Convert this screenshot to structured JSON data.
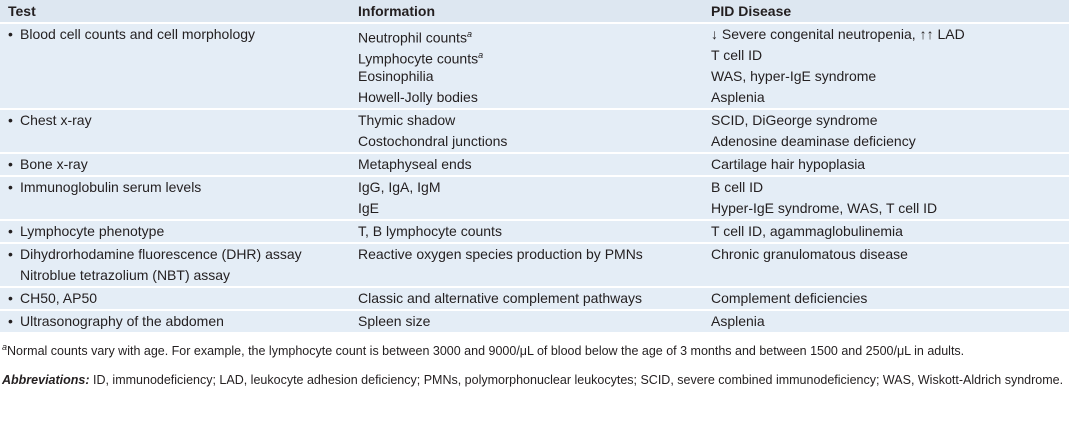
{
  "headers": [
    "Test",
    "Information",
    "PID Disease"
  ],
  "rows": [
    {
      "test": [
        "Blood cell counts and cell morphology"
      ],
      "info": [
        "Neutrophil counts",
        "Lymphocyte counts",
        "Eosinophilia",
        "Howell-Jolly bodies"
      ],
      "info_sup": [
        "a",
        "a",
        "",
        ""
      ],
      "disease": [
        "↓ Severe congenital neutropenia, ↑↑ LAD",
        "T cell ID",
        "WAS, hyper-IgE syndrome",
        "Asplenia"
      ]
    },
    {
      "test": [
        "Chest x-ray"
      ],
      "info": [
        "Thymic shadow",
        "Costochondral junctions"
      ],
      "info_sup": [
        "",
        ""
      ],
      "disease": [
        "SCID, DiGeorge syndrome",
        "Adenosine deaminase deficiency"
      ]
    },
    {
      "test": [
        "Bone x-ray"
      ],
      "info": [
        "Metaphyseal ends"
      ],
      "info_sup": [
        ""
      ],
      "disease": [
        "Cartilage hair hypoplasia"
      ]
    },
    {
      "test": [
        "Immunoglobulin serum levels"
      ],
      "info": [
        "IgG, IgA, IgM",
        "IgE"
      ],
      "info_sup": [
        "",
        ""
      ],
      "disease": [
        "B cell ID",
        "Hyper-IgE syndrome, WAS, T cell ID"
      ]
    },
    {
      "test": [
        "Lymphocyte phenotype"
      ],
      "info": [
        "T, B lymphocyte counts"
      ],
      "info_sup": [
        ""
      ],
      "disease": [
        "T cell ID, agammaglobulinemia"
      ]
    },
    {
      "test": [
        "Dihydrorhodamine fluorescence (DHR) assay",
        "Nitroblue tetrazolium (NBT) assay"
      ],
      "info": [
        "Reactive oxygen species production by PMNs"
      ],
      "info_sup": [
        ""
      ],
      "disease": [
        "Chronic granulomatous disease"
      ]
    },
    {
      "test": [
        "CH50, AP50"
      ],
      "info": [
        "Classic and alternative complement pathways"
      ],
      "info_sup": [
        ""
      ],
      "disease": [
        "Complement deficiencies"
      ]
    },
    {
      "test": [
        "Ultrasonography of the abdomen"
      ],
      "info": [
        "Spleen size"
      ],
      "info_sup": [
        ""
      ],
      "disease": [
        "Asplenia"
      ]
    }
  ],
  "bullet": "•",
  "footnote": {
    "marker": "a",
    "text": "Normal counts vary with age. For example, the lymphocyte count is between 3000 and 9000/μL of blood below the age of 3 months and between 1500 and 2500/μL in adults."
  },
  "abbreviations": {
    "label": "Abbreviations:",
    "text": " ID, immunodeficiency; LAD, leukocyte adhesion deficiency; PMNs, polymorphonuclear leukocytes; SCID, severe combined immunodeficiency; WAS, Wiskott-Aldrich syndrome."
  },
  "colors": {
    "row_bg": "#e4edf6",
    "header_bg": "#dde7f1"
  }
}
